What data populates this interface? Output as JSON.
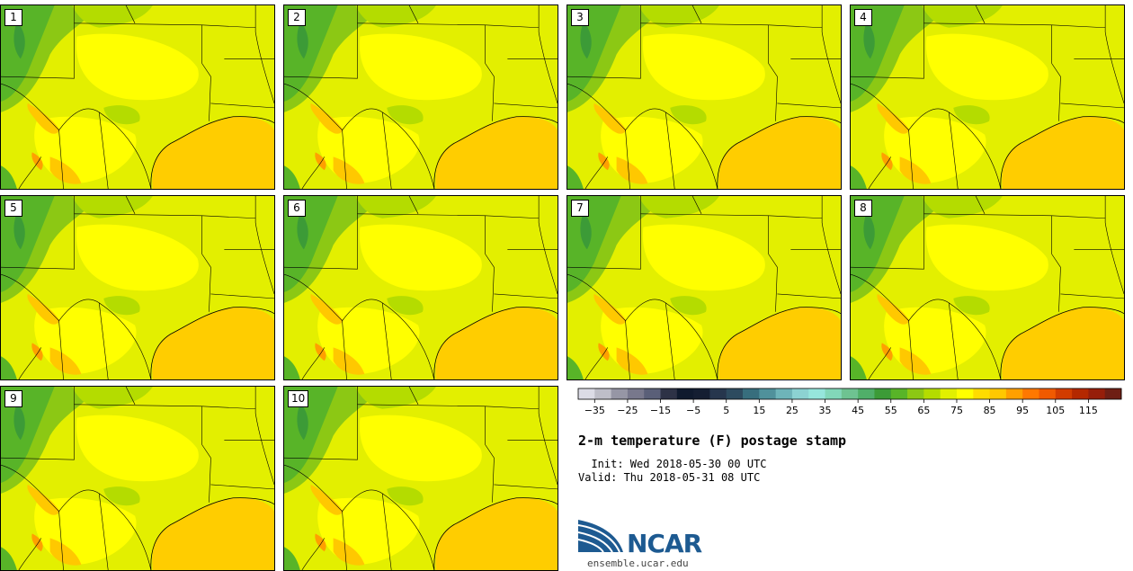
{
  "figure": {
    "title": "2-m temperature (F) postage stamp",
    "init": "  Init: Wed 2018-05-30 00 UTC",
    "valid": "Valid: Thu 2018-05-31 08 UTC"
  },
  "panels": [
    {
      "label": "1"
    },
    {
      "label": "2"
    },
    {
      "label": "3"
    },
    {
      "label": "4"
    },
    {
      "label": "5"
    },
    {
      "label": "6"
    },
    {
      "label": "7"
    },
    {
      "label": "8"
    },
    {
      "label": "9"
    },
    {
      "label": "10"
    }
  ],
  "colorbar": {
    "unit": "F",
    "ticks": [
      -35,
      -25,
      -15,
      -5,
      5,
      15,
      25,
      35,
      45,
      55,
      65,
      75,
      85,
      95,
      105,
      115
    ],
    "tick_labels": [
      "−35",
      "−25",
      "−15",
      "−5",
      "5",
      "15",
      "25",
      "35",
      "45",
      "55",
      "65",
      "75",
      "85",
      "95",
      "105",
      "115"
    ],
    "colors": [
      "#dcdce6",
      "#bebec8",
      "#9696a5",
      "#78788c",
      "#5a5f78",
      "#2d3246",
      "#0f1a2e",
      "#141e32",
      "#26364d",
      "#2d4b5f",
      "#376e7d",
      "#50919b",
      "#6eb4b9",
      "#8cd2d2",
      "#96e6dc",
      "#82d7b9",
      "#6ec391",
      "#50af69",
      "#3c9b37",
      "#58b428",
      "#8cc814",
      "#b4dc00",
      "#e1f000",
      "#ffff00",
      "#ffdc00",
      "#ffc800",
      "#ffa000",
      "#ff7800",
      "#f05a00",
      "#d23c00",
      "#b42800",
      "#961e0a",
      "#6e1e14"
    ]
  },
  "map_colors": {
    "land": "#e3ef00",
    "warm": "#ffff00",
    "hot": "#ffc800",
    "hotter": "#ffa000",
    "cool": "#b4dc00",
    "cooler": "#8cc814",
    "cold": "#58b428",
    "coldest": "#3c9b37",
    "gulf": "#ffcd00",
    "border": "#000000"
  },
  "branding": {
    "logo_text": "NCAR",
    "url": "ensemble.ucar.edu"
  }
}
